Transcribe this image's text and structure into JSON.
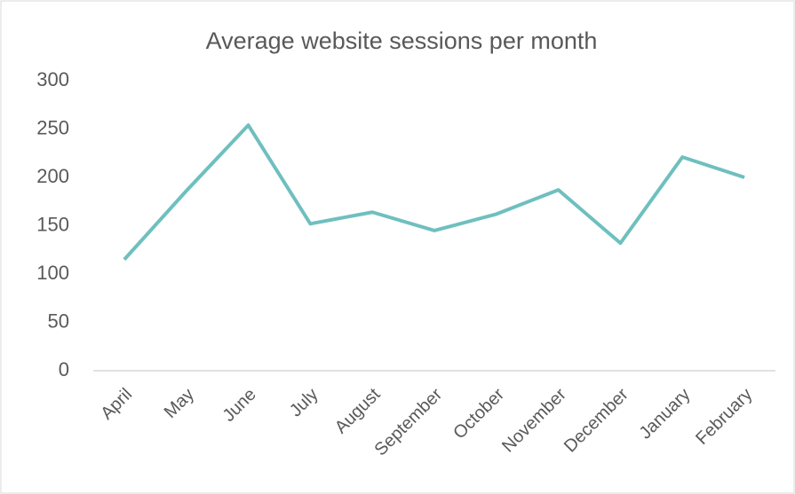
{
  "chart_data": {
    "type": "line",
    "title": "Average website sessions per month",
    "categories": [
      "April",
      "May",
      "June",
      "July",
      "August",
      "September",
      "October",
      "November",
      "December",
      "January",
      "February"
    ],
    "values": [
      115,
      186,
      254,
      152,
      164,
      145,
      162,
      187,
      132,
      221,
      200
    ],
    "color": "#6fbfbf",
    "ylim": [
      0,
      300
    ],
    "yticks": [
      0,
      50,
      100,
      150,
      200,
      250,
      300
    ],
    "grid": false
  }
}
